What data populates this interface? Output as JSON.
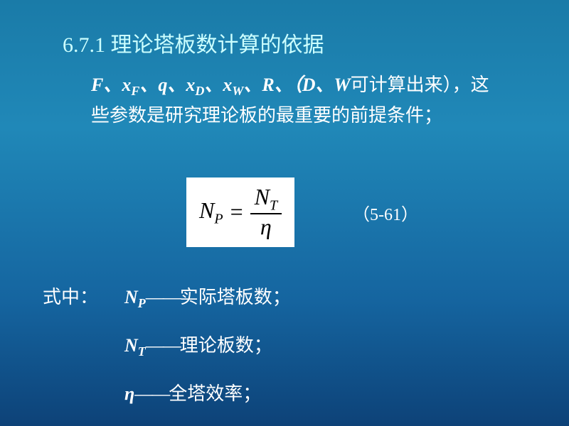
{
  "title": "6.7.1 理论塔板数计算的依据",
  "intro": {
    "prefix_vars": "F、x",
    "sub_F": "F",
    "sep1": "、q、x",
    "sub_D": "D",
    "sep2": "、x",
    "sub_W": "W",
    "sep3": "、R、（D、W",
    "tail": "可计算出来），这些参数是研究理论板的最重要的前提条件；"
  },
  "equation": {
    "lhs_sym": "N",
    "lhs_sub": "P",
    "eq": "=",
    "num_sym": "N",
    "num_sub": "T",
    "den": "η",
    "number": "（5-61）"
  },
  "where_label": "式中：",
  "defs": [
    {
      "sym": "N",
      "sub": "P",
      "dash": "——",
      "text": "实际塔板数；"
    },
    {
      "sym": "N",
      "sub": "T",
      "dash": "——",
      "text": "理论板数；"
    },
    {
      "sym": "η",
      "sub": "",
      "dash": "——",
      "text": "全塔效率；"
    }
  ],
  "colors": {
    "title_color": "#ccffff",
    "text_color": "#ffffff",
    "box_bg": "#ffffff",
    "box_fg": "#000000"
  }
}
